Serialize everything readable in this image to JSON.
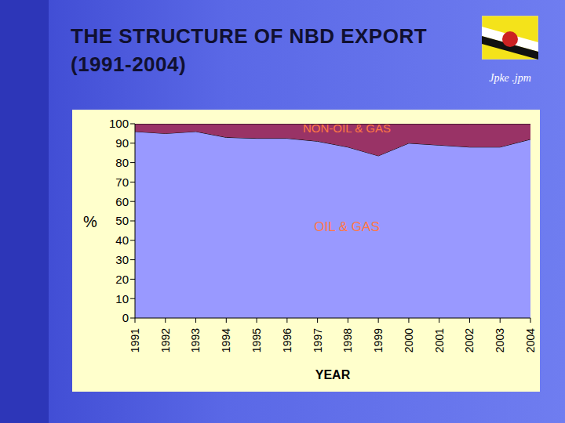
{
  "chart_data": {
    "type": "area",
    "title": "THE STRUCTURE OF NBD EXPORT (1991-2004)",
    "x_label": "YEAR",
    "y_label": "%",
    "annotations": [
      "Jpke .jpm"
    ],
    "categories": [
      "1991",
      "1992",
      "1993",
      "1994",
      "1995",
      "1996",
      "1997",
      "1998",
      "1999",
      "2000",
      "2001",
      "2002",
      "2003",
      "2004"
    ],
    "series": [
      {
        "name": "OIL & GAS",
        "color": "#9999ff",
        "values": [
          96,
          95,
          96,
          93,
          92.5,
          92.5,
          91,
          88,
          83.5,
          90,
          89,
          88,
          88,
          92
        ]
      },
      {
        "name": "NON-OIL & GAS",
        "color": "#993366",
        "values": [
          4,
          5,
          4,
          7,
          7.5,
          7.5,
          9,
          12,
          16.5,
          10,
          11,
          12,
          12,
          8
        ]
      }
    ],
    "ylim": [
      0,
      100
    ],
    "yticks": [
      0,
      10,
      20,
      30,
      40,
      50,
      60,
      70,
      80,
      90,
      100
    ],
    "stacked": true,
    "grid": false
  }
}
